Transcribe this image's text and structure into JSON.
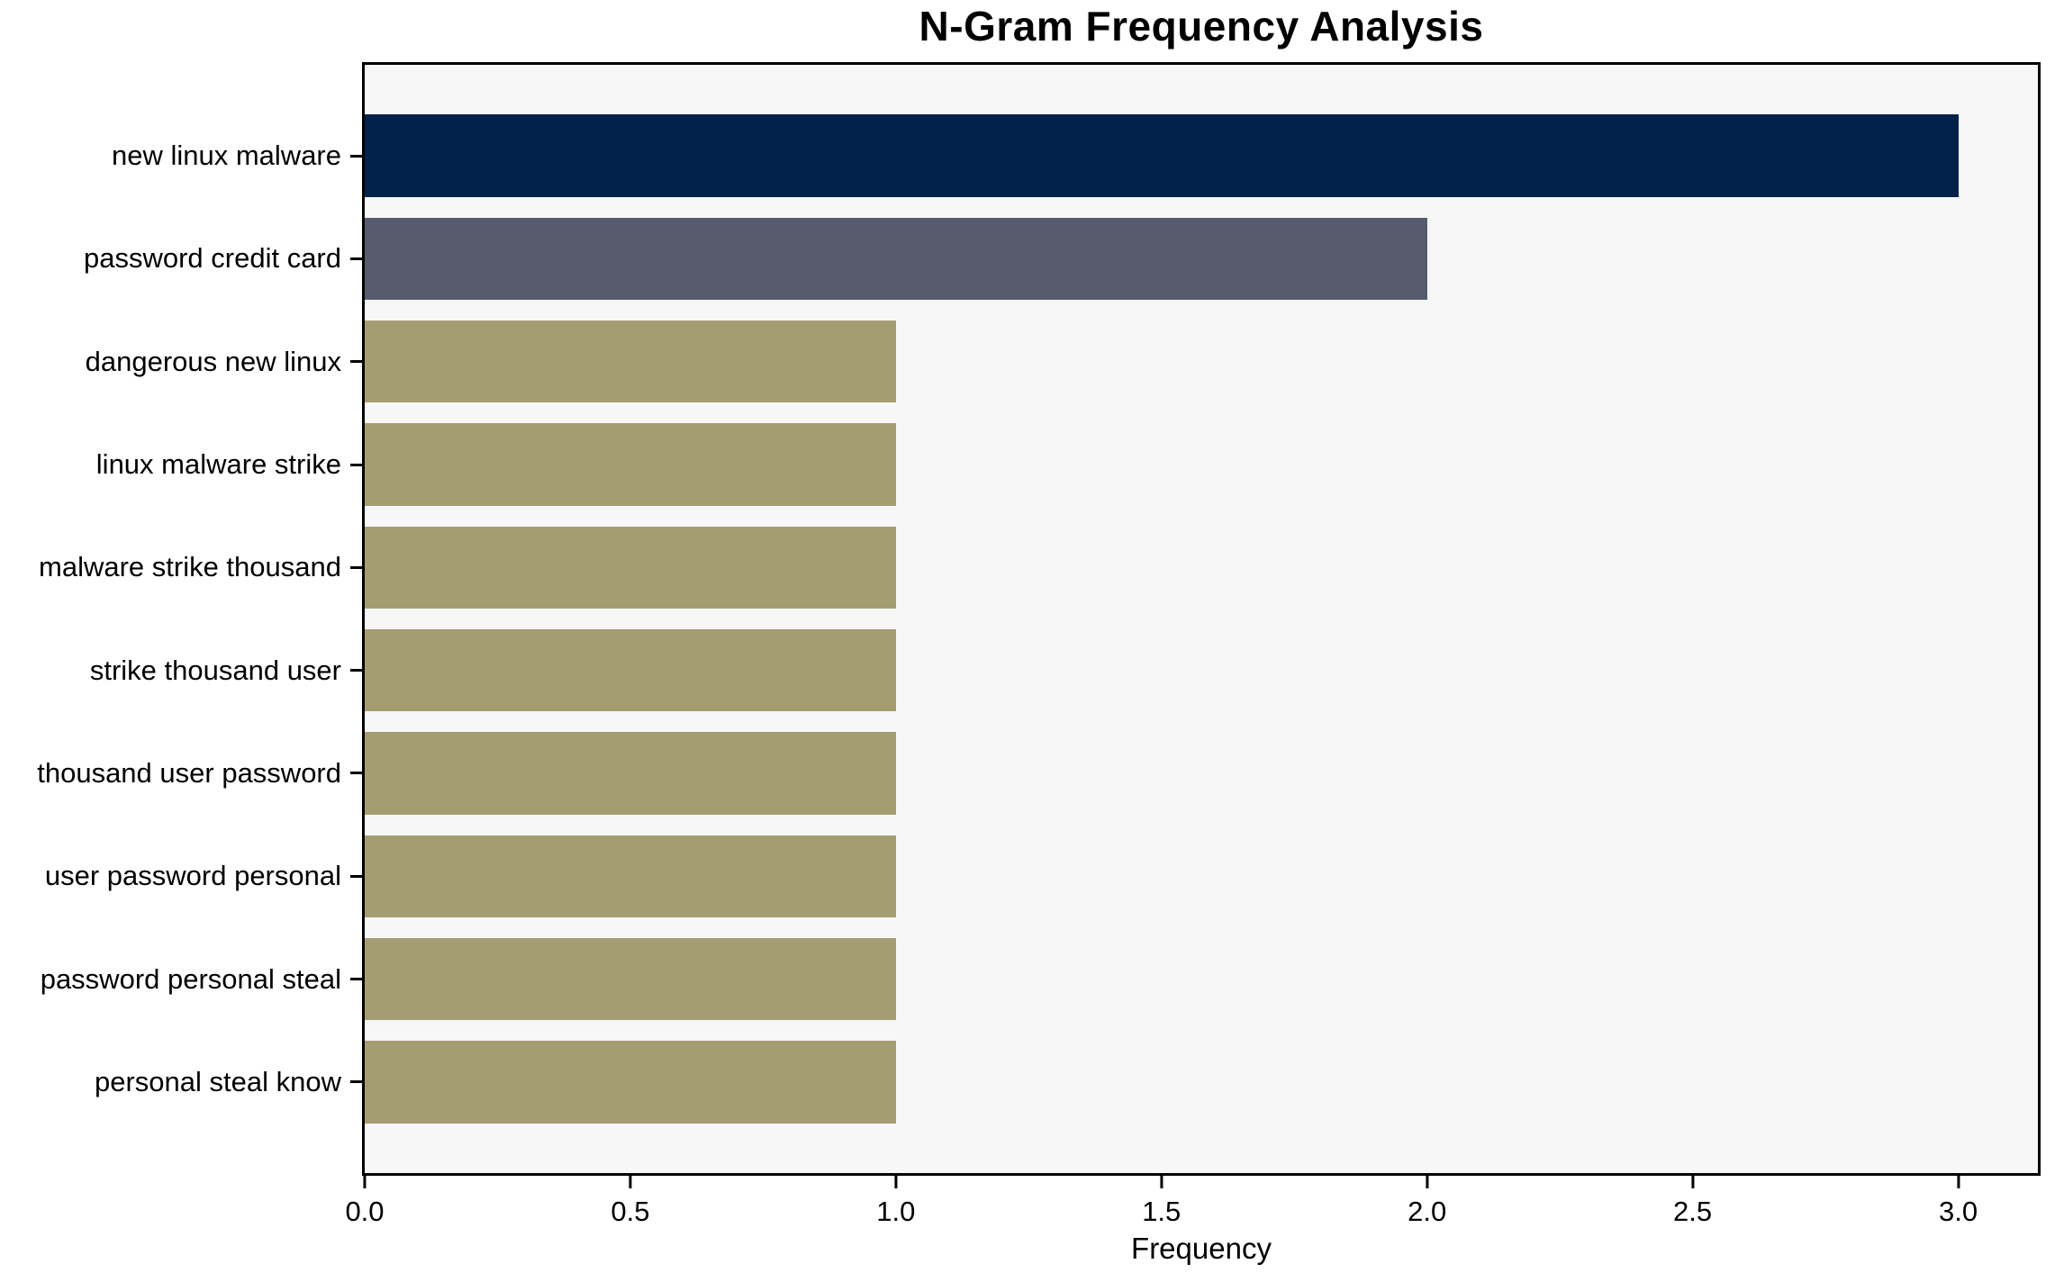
{
  "chart_data": {
    "type": "bar",
    "orientation": "horizontal",
    "title": "N-Gram Frequency Analysis",
    "xlabel": "Frequency",
    "ylabel": "",
    "categories": [
      "new linux malware",
      "password credit card",
      "dangerous new linux",
      "linux malware strike",
      "malware strike thousand",
      "strike thousand user",
      "thousand user password",
      "user password personal",
      "password personal steal",
      "personal steal know"
    ],
    "values": [
      3,
      2,
      1,
      1,
      1,
      1,
      1,
      1,
      1,
      1
    ],
    "bar_colors": [
      "#01224A",
      "#565C6D",
      "#A59D72",
      "#A59D72",
      "#A59D72",
      "#A59D72",
      "#A59D72",
      "#A59D72",
      "#A59D72",
      "#A59D72"
    ],
    "xlim": [
      0,
      3.15
    ],
    "xtick_values": [
      0,
      0.5,
      1,
      1.5,
      2,
      2.5,
      3
    ],
    "xtick_labels": [
      "0.0",
      "0.5",
      "1.0",
      "1.5",
      "2.0",
      "2.5",
      "3.0"
    ],
    "grid": false,
    "legend": false,
    "colors": {
      "figure_bg": "#FFFFFF",
      "plot_bg": "#F7F7F7",
      "spine": "#000000",
      "text": "#000000"
    }
  }
}
